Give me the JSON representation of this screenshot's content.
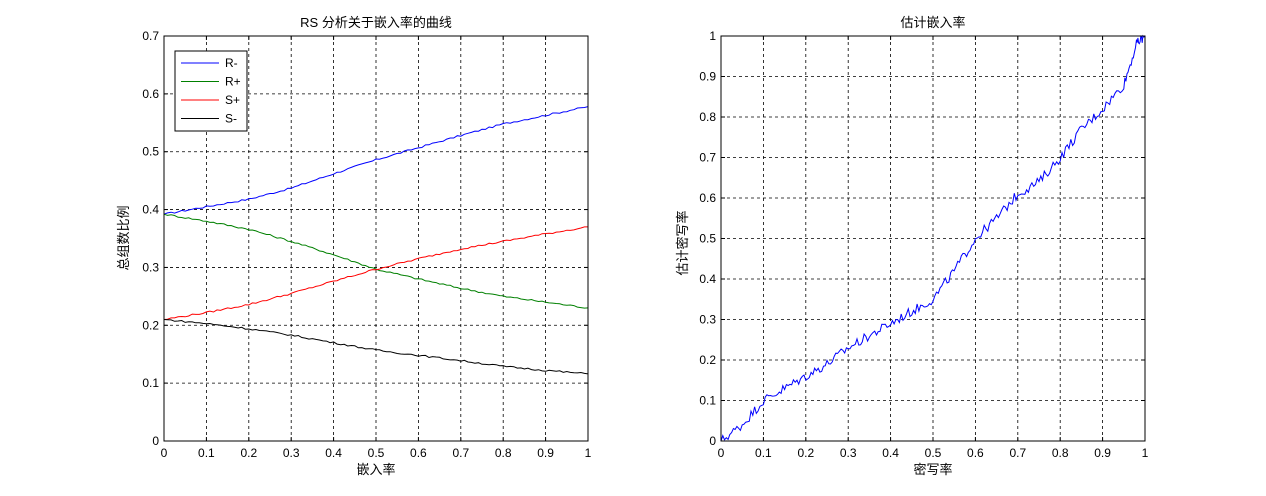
{
  "charts": [
    {
      "chart_data": {
        "type": "line",
        "title": "RS 分析关于嵌入率的曲线",
        "xlabel": "嵌入率",
        "ylabel": "总组数比例",
        "xlim": [
          0,
          1
        ],
        "ylim": [
          0,
          0.7
        ],
        "xticks": [
          0,
          0.1,
          0.2,
          0.3,
          0.4,
          0.5,
          0.6,
          0.7,
          0.8,
          0.9,
          1
        ],
        "xtick_labels": [
          "0",
          "0.1",
          "0.2",
          "0.3",
          "0.4",
          "0.5",
          "0.6",
          "0.7",
          "0.8",
          "0.9",
          "1"
        ],
        "yticks": [
          0,
          0.1,
          0.2,
          0.3,
          0.4,
          0.5,
          0.6,
          0.7
        ],
        "ytick_labels": [
          "0",
          "0.1",
          "0.2",
          "0.3",
          "0.4",
          "0.5",
          "0.6",
          "0.7"
        ],
        "grid": true,
        "legend": "top-left",
        "x": [
          0,
          0.1,
          0.2,
          0.3,
          0.4,
          0.5,
          0.6,
          0.7,
          0.8,
          0.9,
          1.0
        ],
        "series": [
          {
            "name": "R-",
            "color": "#0000ff",
            "values": [
              0.392,
              0.405,
              0.418,
              0.437,
              0.462,
              0.486,
              0.507,
              0.528,
              0.548,
              0.563,
              0.578
            ]
          },
          {
            "name": "R+",
            "color": "#008000",
            "values": [
              0.392,
              0.38,
              0.366,
              0.345,
              0.322,
              0.297,
              0.28,
              0.264,
              0.25,
              0.24,
              0.23
            ]
          },
          {
            "name": "S+",
            "color": "#ff0000",
            "values": [
              0.21,
              0.222,
              0.236,
              0.255,
              0.276,
              0.297,
              0.315,
              0.332,
              0.345,
              0.358,
              0.37
            ]
          },
          {
            "name": "S-",
            "color": "#000000",
            "values": [
              0.21,
              0.203,
              0.194,
              0.183,
              0.17,
              0.157,
              0.148,
              0.139,
              0.129,
              0.122,
              0.116
            ]
          }
        ]
      }
    },
    {
      "chart_data": {
        "type": "line",
        "title": "估计嵌入率",
        "xlabel": "密写率",
        "ylabel": "估计密写率",
        "xlim": [
          0,
          1
        ],
        "ylim": [
          0,
          1
        ],
        "xticks": [
          0,
          0.1,
          0.2,
          0.3,
          0.4,
          0.5,
          0.6,
          0.7,
          0.8,
          0.9,
          1
        ],
        "xtick_labels": [
          "0",
          "0.1",
          "0.2",
          "0.3",
          "0.4",
          "0.5",
          "0.6",
          "0.7",
          "0.8",
          "0.9",
          "1"
        ],
        "yticks": [
          0,
          0.1,
          0.2,
          0.3,
          0.4,
          0.5,
          0.6,
          0.7,
          0.8,
          0.9,
          1
        ],
        "ytick_labels": [
          "0",
          "0.1",
          "0.2",
          "0.3",
          "0.4",
          "0.5",
          "0.6",
          "0.7",
          "0.8",
          "0.9",
          "1"
        ],
        "grid": true,
        "x": [
          0,
          0.05,
          0.1,
          0.15,
          0.2,
          0.25,
          0.3,
          0.35,
          0.4,
          0.45,
          0.5,
          0.55,
          0.6,
          0.65,
          0.7,
          0.75,
          0.8,
          0.85,
          0.9,
          0.95,
          0.98,
          1.0
        ],
        "series": [
          {
            "name": "",
            "color": "#0000ff",
            "values": [
              0.0,
              0.04,
              0.1,
              0.13,
              0.16,
              0.19,
              0.23,
              0.26,
              0.29,
              0.32,
              0.35,
              0.42,
              0.5,
              0.55,
              0.61,
              0.64,
              0.7,
              0.77,
              0.82,
              0.88,
              0.98,
              1.0
            ]
          }
        ]
      }
    }
  ]
}
